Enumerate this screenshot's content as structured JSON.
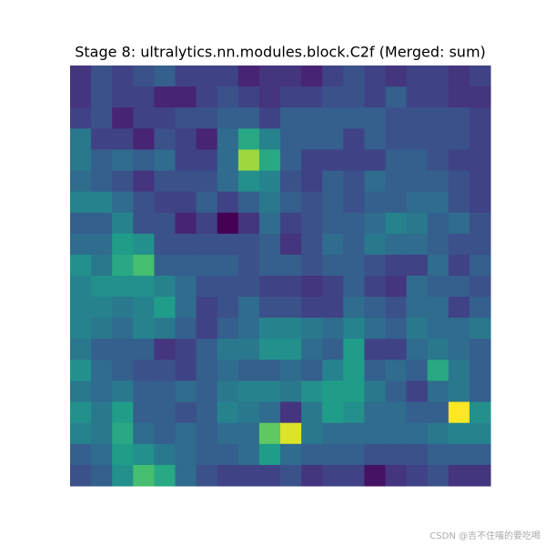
{
  "chart_data": {
    "type": "heatmap",
    "title": "Stage 8: ultralytics.nn.modules.block.C2f (Merged: sum)",
    "colormap": "viridis",
    "z": [
      [
        0.15,
        0.25,
        0.2,
        0.25,
        0.3,
        0.2,
        0.2,
        0.2,
        0.1,
        0.15,
        0.15,
        0.1,
        0.2,
        0.25,
        0.2,
        0.15,
        0.2,
        0.2,
        0.15,
        0.2
      ],
      [
        0.15,
        0.25,
        0.2,
        0.2,
        0.1,
        0.1,
        0.2,
        0.25,
        0.2,
        0.15,
        0.2,
        0.2,
        0.25,
        0.25,
        0.2,
        0.3,
        0.2,
        0.2,
        0.15,
        0.15
      ],
      [
        0.2,
        0.25,
        0.1,
        0.2,
        0.2,
        0.25,
        0.25,
        0.3,
        0.3,
        0.2,
        0.3,
        0.3,
        0.3,
        0.3,
        0.3,
        0.25,
        0.25,
        0.25,
        0.25,
        0.2
      ],
      [
        0.4,
        0.2,
        0.2,
        0.1,
        0.25,
        0.2,
        0.1,
        0.35,
        0.6,
        0.45,
        0.3,
        0.3,
        0.3,
        0.2,
        0.3,
        0.25,
        0.25,
        0.25,
        0.25,
        0.2
      ],
      [
        0.4,
        0.3,
        0.35,
        0.3,
        0.35,
        0.2,
        0.2,
        0.35,
        0.85,
        0.6,
        0.3,
        0.2,
        0.2,
        0.2,
        0.2,
        0.3,
        0.3,
        0.25,
        0.2,
        0.2
      ],
      [
        0.35,
        0.3,
        0.25,
        0.15,
        0.25,
        0.25,
        0.25,
        0.35,
        0.5,
        0.45,
        0.25,
        0.2,
        0.3,
        0.25,
        0.35,
        0.3,
        0.3,
        0.3,
        0.25,
        0.2
      ],
      [
        0.45,
        0.45,
        0.35,
        0.25,
        0.2,
        0.2,
        0.3,
        0.2,
        0.3,
        0.4,
        0.3,
        0.25,
        0.3,
        0.25,
        0.3,
        0.3,
        0.35,
        0.35,
        0.25,
        0.2
      ],
      [
        0.3,
        0.3,
        0.45,
        0.25,
        0.25,
        0.1,
        0.2,
        0.0,
        0.15,
        0.35,
        0.2,
        0.25,
        0.3,
        0.3,
        0.35,
        0.45,
        0.4,
        0.3,
        0.35,
        0.25
      ],
      [
        0.35,
        0.35,
        0.55,
        0.5,
        0.25,
        0.25,
        0.25,
        0.25,
        0.25,
        0.3,
        0.15,
        0.25,
        0.35,
        0.3,
        0.4,
        0.35,
        0.35,
        0.3,
        0.25,
        0.25
      ],
      [
        0.5,
        0.4,
        0.6,
        0.7,
        0.3,
        0.3,
        0.3,
        0.3,
        0.25,
        0.3,
        0.3,
        0.25,
        0.3,
        0.3,
        0.25,
        0.2,
        0.2,
        0.35,
        0.2,
        0.3
      ],
      [
        0.45,
        0.5,
        0.5,
        0.5,
        0.45,
        0.35,
        0.25,
        0.25,
        0.25,
        0.2,
        0.2,
        0.15,
        0.2,
        0.3,
        0.2,
        0.15,
        0.35,
        0.3,
        0.3,
        0.25
      ],
      [
        0.45,
        0.45,
        0.4,
        0.45,
        0.55,
        0.35,
        0.2,
        0.25,
        0.35,
        0.25,
        0.25,
        0.2,
        0.2,
        0.35,
        0.3,
        0.25,
        0.35,
        0.35,
        0.2,
        0.3
      ],
      [
        0.45,
        0.4,
        0.35,
        0.45,
        0.4,
        0.3,
        0.2,
        0.3,
        0.35,
        0.45,
        0.45,
        0.4,
        0.35,
        0.45,
        0.35,
        0.3,
        0.4,
        0.35,
        0.35,
        0.4
      ],
      [
        0.4,
        0.3,
        0.3,
        0.3,
        0.15,
        0.2,
        0.3,
        0.4,
        0.4,
        0.5,
        0.5,
        0.35,
        0.3,
        0.55,
        0.2,
        0.2,
        0.35,
        0.4,
        0.35,
        0.3
      ],
      [
        0.5,
        0.35,
        0.3,
        0.25,
        0.25,
        0.2,
        0.3,
        0.35,
        0.3,
        0.3,
        0.35,
        0.3,
        0.45,
        0.55,
        0.3,
        0.35,
        0.3,
        0.6,
        0.4,
        0.3
      ],
      [
        0.4,
        0.35,
        0.4,
        0.3,
        0.3,
        0.35,
        0.3,
        0.4,
        0.45,
        0.45,
        0.4,
        0.5,
        0.55,
        0.55,
        0.4,
        0.3,
        0.2,
        0.35,
        0.4,
        0.3
      ],
      [
        0.5,
        0.4,
        0.55,
        0.3,
        0.3,
        0.25,
        0.3,
        0.45,
        0.4,
        0.35,
        0.15,
        0.4,
        0.55,
        0.5,
        0.35,
        0.35,
        0.3,
        0.3,
        1.0,
        0.5
      ],
      [
        0.45,
        0.4,
        0.6,
        0.35,
        0.3,
        0.35,
        0.3,
        0.35,
        0.35,
        0.75,
        0.95,
        0.4,
        0.35,
        0.35,
        0.35,
        0.35,
        0.35,
        0.4,
        0.45,
        0.45
      ],
      [
        0.3,
        0.35,
        0.55,
        0.5,
        0.4,
        0.35,
        0.3,
        0.3,
        0.35,
        0.55,
        0.35,
        0.3,
        0.3,
        0.3,
        0.25,
        0.25,
        0.25,
        0.3,
        0.3,
        0.3
      ],
      [
        0.25,
        0.3,
        0.5,
        0.7,
        0.6,
        0.35,
        0.25,
        0.2,
        0.2,
        0.2,
        0.25,
        0.15,
        0.2,
        0.2,
        0.05,
        0.15,
        0.2,
        0.25,
        0.15,
        0.15
      ]
    ]
  },
  "watermark": "CSDN @吉不住喵的要吃喝"
}
